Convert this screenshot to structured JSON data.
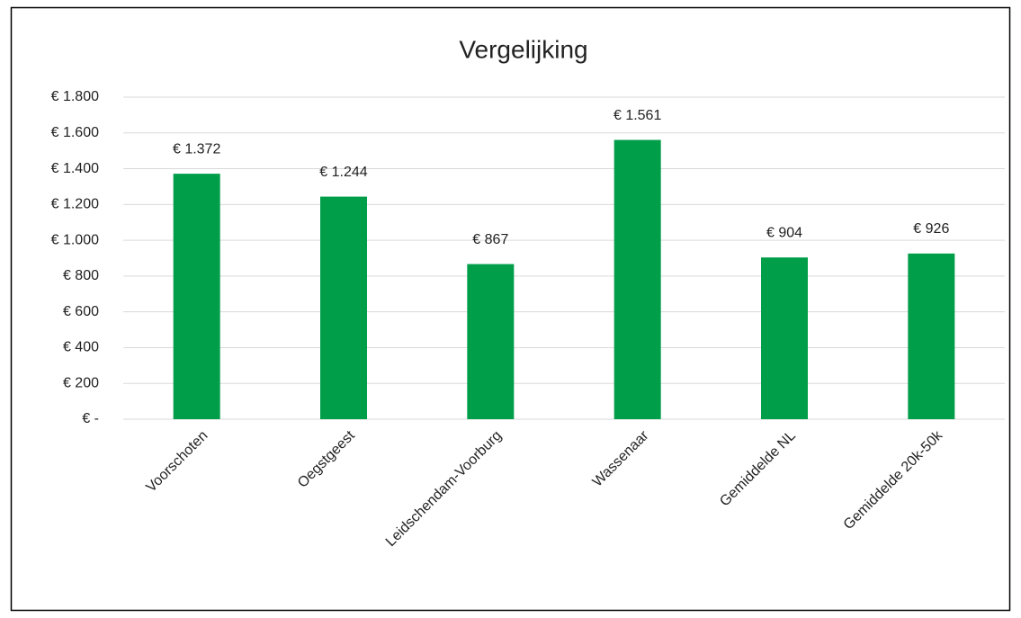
{
  "chart_data": {
    "type": "bar",
    "title": "Vergelijking",
    "categories": [
      "Voorschoten",
      "Oegstgeest",
      "Leidschendam-Voorburg",
      "Wassenaar",
      "Gemiddelde NL",
      "Gemiddelde 20k-50k"
    ],
    "values": [
      1372,
      1244,
      867,
      1561,
      904,
      926
    ],
    "value_labels": [
      "€ 1.372",
      "€ 1.244",
      "€ 867",
      "€ 1.561",
      "€ 904",
      "€ 926"
    ],
    "color": "#009e49",
    "ylim": [
      0,
      1800
    ],
    "yticks": [
      {
        "value": 0,
        "label": "€ -"
      },
      {
        "value": 200,
        "label": "€ 200"
      },
      {
        "value": 400,
        "label": "€ 400"
      },
      {
        "value": 600,
        "label": "€ 600"
      },
      {
        "value": 800,
        "label": "€ 800"
      },
      {
        "value": 1000,
        "label": "€ 1.000"
      },
      {
        "value": 1200,
        "label": "€ 1.200"
      },
      {
        "value": 1400,
        "label": "€ 1.400"
      },
      {
        "value": 1600,
        "label": "€ 1.600"
      },
      {
        "value": 1800,
        "label": "€ 1.800"
      }
    ],
    "grid": true
  }
}
